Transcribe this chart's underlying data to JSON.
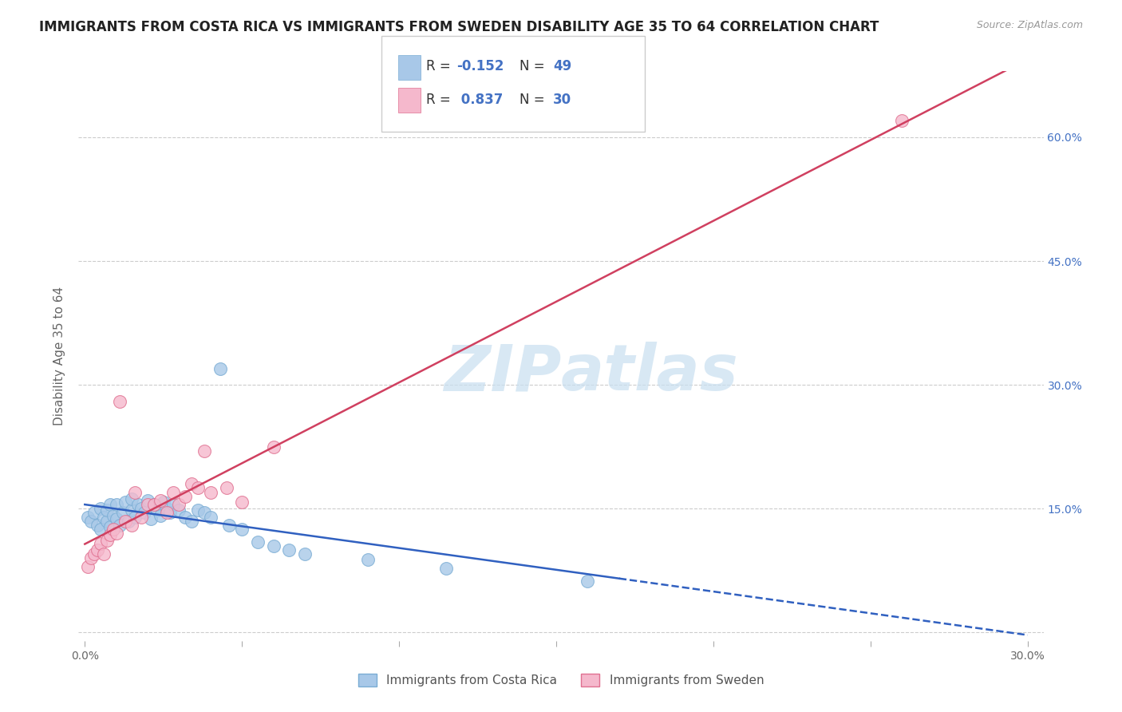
{
  "title": "IMMIGRANTS FROM COSTA RICA VS IMMIGRANTS FROM SWEDEN DISABILITY AGE 35 TO 64 CORRELATION CHART",
  "source": "Source: ZipAtlas.com",
  "ylabel": "Disability Age 35 to 64",
  "xlim": [
    -0.002,
    0.305
  ],
  "ylim": [
    -0.01,
    0.68
  ],
  "x_ticks": [
    0.0,
    0.05,
    0.1,
    0.15,
    0.2,
    0.25,
    0.3
  ],
  "x_tick_labels": [
    "0.0%",
    "",
    "",
    "",
    "",
    "",
    "30.0%"
  ],
  "y_ticks": [
    0.0,
    0.15,
    0.3,
    0.45,
    0.6
  ],
  "y_tick_labels": [
    "",
    "15.0%",
    "30.0%",
    "45.0%",
    "60.0%"
  ],
  "costa_rica_color": "#a8c8e8",
  "costa_rica_edge": "#7aadd4",
  "sweden_color": "#f5b8cc",
  "sweden_edge": "#e07090",
  "trend_costa_rica_color": "#3060c0",
  "trend_sweden_color": "#d04060",
  "r_costa_rica": -0.152,
  "n_costa_rica": 49,
  "r_sweden": 0.837,
  "n_sweden": 30,
  "costa_rica_points_x": [
    0.001,
    0.002,
    0.003,
    0.004,
    0.005,
    0.005,
    0.006,
    0.007,
    0.007,
    0.008,
    0.008,
    0.009,
    0.01,
    0.01,
    0.011,
    0.012,
    0.013,
    0.014,
    0.015,
    0.015,
    0.016,
    0.017,
    0.018,
    0.019,
    0.02,
    0.021,
    0.022,
    0.023,
    0.024,
    0.025,
    0.026,
    0.027,
    0.028,
    0.03,
    0.032,
    0.034,
    0.036,
    0.038,
    0.04,
    0.043,
    0.046,
    0.05,
    0.055,
    0.06,
    0.065,
    0.07,
    0.09,
    0.115,
    0.16
  ],
  "costa_rica_points_y": [
    0.14,
    0.135,
    0.145,
    0.13,
    0.125,
    0.15,
    0.14,
    0.135,
    0.148,
    0.128,
    0.155,
    0.142,
    0.138,
    0.155,
    0.13,
    0.145,
    0.158,
    0.135,
    0.148,
    0.162,
    0.14,
    0.155,
    0.15,
    0.145,
    0.16,
    0.138,
    0.155,
    0.148,
    0.142,
    0.158,
    0.15,
    0.145,
    0.155,
    0.148,
    0.14,
    0.135,
    0.148,
    0.145,
    0.14,
    0.32,
    0.13,
    0.125,
    0.11,
    0.105,
    0.1,
    0.095,
    0.088,
    0.078,
    0.062
  ],
  "sweden_points_x": [
    0.001,
    0.002,
    0.003,
    0.004,
    0.005,
    0.006,
    0.007,
    0.008,
    0.009,
    0.01,
    0.011,
    0.013,
    0.015,
    0.016,
    0.018,
    0.02,
    0.022,
    0.024,
    0.026,
    0.028,
    0.03,
    0.032,
    0.034,
    0.036,
    0.038,
    0.04,
    0.045,
    0.05,
    0.06,
    0.26
  ],
  "sweden_points_y": [
    0.08,
    0.09,
    0.095,
    0.1,
    0.108,
    0.095,
    0.112,
    0.118,
    0.125,
    0.12,
    0.28,
    0.135,
    0.13,
    0.17,
    0.14,
    0.155,
    0.155,
    0.16,
    0.145,
    0.17,
    0.155,
    0.165,
    0.18,
    0.175,
    0.22,
    0.17,
    0.175,
    0.158,
    0.225,
    0.62
  ],
  "legend_label_cr": "Immigrants from Costa Rica",
  "legend_label_sw": "Immigrants from Sweden"
}
